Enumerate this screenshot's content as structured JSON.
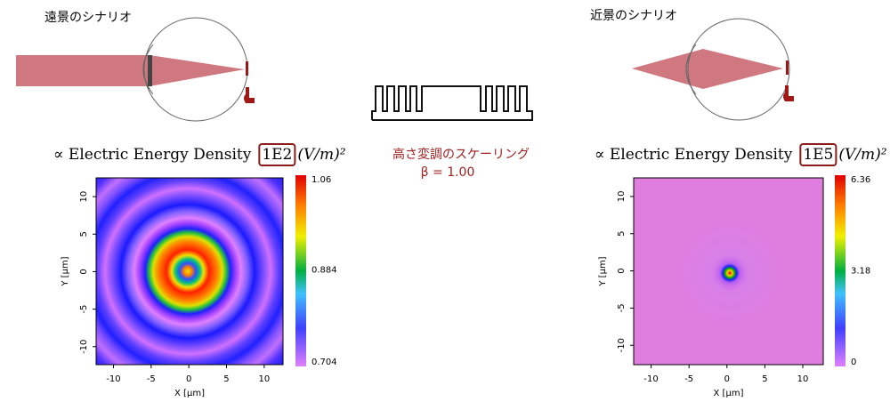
{
  "left": {
    "scenario": "遠景のシナリオ",
    "heading": {
      "prefix": "∝ Electric Energy Density",
      "scale": "1E2",
      "unit": "(V/m)²"
    },
    "plot": {
      "xlabel": "X [μm]",
      "ylabel": "Y [μm]",
      "xlim": [
        -12.3,
        12.5
      ],
      "ylim": [
        -12.4,
        12.5
      ],
      "xticks": [
        -10,
        -5,
        0,
        5,
        10
      ],
      "yticks": [
        -10,
        -5,
        0,
        5,
        10
      ],
      "colorbar": {
        "lim": [
          0.704,
          1.06
        ],
        "ticks": [
          1.06,
          0.884,
          0.704
        ]
      }
    }
  },
  "center": {
    "caption": "高さ変調のスケーリング",
    "beta": "β = 1.00"
  },
  "right": {
    "scenario": "近景のシナリオ",
    "heading": {
      "prefix": "∝ Electric Energy Density",
      "scale": "1E5",
      "unit": "(V/m)²"
    },
    "plot": {
      "xlabel": "X [μm]",
      "ylabel": "Y [μm]",
      "xlim": [
        -12.3,
        12.7
      ],
      "ylim": [
        -12.6,
        12.5
      ],
      "xticks": [
        -10,
        -5,
        0,
        5,
        10
      ],
      "yticks": [
        -10,
        -5,
        0,
        5,
        10
      ],
      "colorbar": {
        "lim": [
          0,
          6.36
        ],
        "ticks": [
          6.36,
          3.18,
          0
        ]
      }
    }
  }
}
